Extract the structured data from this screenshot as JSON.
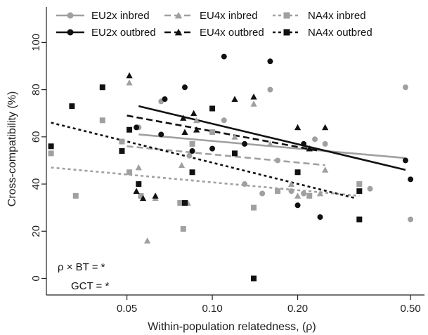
{
  "chart_data": {
    "type": "scatter",
    "xlabel": "Within-population relatedness, (ρ)",
    "ylabel": "Cross-compatibility (%)",
    "x_scale": "log",
    "xlim": [
      0.026,
      0.56
    ],
    "ylim": [
      -7,
      115
    ],
    "x_ticks": [
      0.05,
      0.1,
      0.2,
      0.5
    ],
    "x_tick_labels": [
      "0.05",
      "0.10",
      "0.20",
      "0.50"
    ],
    "y_ticks": [
      0,
      20,
      40,
      60,
      80,
      100
    ],
    "y_tick_labels": [
      "0",
      "20",
      "40",
      "60",
      "80",
      "100"
    ],
    "grid": false,
    "legend_position": "top",
    "annotations": [
      "ρ × BT = *",
      "GCT = *"
    ],
    "colors": {
      "black": "#111111",
      "grey": "#a0a0a0"
    },
    "series": [
      {
        "name": "EU2x inbred",
        "marker": "circle",
        "color": "#a0a0a0",
        "line_style": "solid",
        "points": [
          [
            0.055,
            64
          ],
          [
            0.066,
            75
          ],
          [
            0.083,
            52
          ],
          [
            0.11,
            67
          ],
          [
            0.13,
            40
          ],
          [
            0.15,
            36
          ],
          [
            0.16,
            80
          ],
          [
            0.17,
            50
          ],
          [
            0.19,
            37
          ],
          [
            0.21,
            36
          ],
          [
            0.23,
            59
          ],
          [
            0.25,
            57
          ],
          [
            0.36,
            38
          ],
          [
            0.48,
            81
          ],
          [
            0.5,
            25
          ]
        ],
        "fit": [
          [
            0.055,
            61
          ],
          [
            0.48,
            51
          ]
        ]
      },
      {
        "name": "EU2x outbred",
        "marker": "circle",
        "color": "#111111",
        "line_style": "solid",
        "points": [
          [
            0.054,
            64
          ],
          [
            0.066,
            61
          ],
          [
            0.068,
            76
          ],
          [
            0.08,
            81
          ],
          [
            0.085,
            54
          ],
          [
            0.1,
            55
          ],
          [
            0.11,
            94
          ],
          [
            0.13,
            57
          ],
          [
            0.16,
            92
          ],
          [
            0.2,
            31
          ],
          [
            0.21,
            57
          ],
          [
            0.24,
            26
          ],
          [
            0.48,
            50
          ],
          [
            0.5,
            42
          ]
        ],
        "fit": [
          [
            0.055,
            73
          ],
          [
            0.48,
            46
          ]
        ]
      },
      {
        "name": "EU4x inbred",
        "marker": "triangle",
        "color": "#a0a0a0",
        "line_style": "dashed",
        "points": [
          [
            0.051,
            83
          ],
          [
            0.055,
            47
          ],
          [
            0.059,
            16
          ],
          [
            0.063,
            34
          ],
          [
            0.078,
            48
          ],
          [
            0.082,
            32
          ],
          [
            0.088,
            67
          ],
          [
            0.12,
            60
          ],
          [
            0.14,
            74
          ],
          [
            0.16,
            57
          ],
          [
            0.19,
            40
          ],
          [
            0.2,
            35
          ],
          [
            0.24,
            36
          ],
          [
            0.25,
            46
          ]
        ],
        "fit": [
          [
            0.05,
            56
          ],
          [
            0.25,
            48
          ]
        ]
      },
      {
        "name": "EU4x outbred",
        "marker": "triangle",
        "color": "#111111",
        "line_style": "dashed",
        "points": [
          [
            0.051,
            86
          ],
          [
            0.054,
            37
          ],
          [
            0.057,
            34
          ],
          [
            0.063,
            35
          ],
          [
            0.079,
            68
          ],
          [
            0.08,
            62
          ],
          [
            0.086,
            70
          ],
          [
            0.088,
            63
          ],
          [
            0.12,
            76
          ],
          [
            0.14,
            77
          ],
          [
            0.2,
            64
          ],
          [
            0.22,
            55
          ],
          [
            0.25,
            64
          ]
        ],
        "fit": [
          [
            0.05,
            69
          ],
          [
            0.24,
            54
          ]
        ]
      },
      {
        "name": "NA4x inbred",
        "marker": "square",
        "color": "#a0a0a0",
        "line_style": "dotted",
        "points": [
          [
            0.027,
            53
          ],
          [
            0.033,
            35
          ],
          [
            0.041,
            67
          ],
          [
            0.048,
            58
          ],
          [
            0.051,
            45
          ],
          [
            0.056,
            35
          ],
          [
            0.077,
            32
          ],
          [
            0.079,
            21
          ],
          [
            0.085,
            57
          ],
          [
            0.1,
            62
          ],
          [
            0.14,
            30
          ],
          [
            0.17,
            37
          ],
          [
            0.22,
            35
          ],
          [
            0.33,
            40
          ]
        ],
        "fit": [
          [
            0.027,
            47
          ],
          [
            0.33,
            35
          ]
        ]
      },
      {
        "name": "NA4x outbred",
        "marker": "square",
        "color": "#111111",
        "line_style": "dotted",
        "points": [
          [
            0.027,
            56
          ],
          [
            0.032,
            73
          ],
          [
            0.041,
            81
          ],
          [
            0.048,
            54
          ],
          [
            0.051,
            63
          ],
          [
            0.055,
            40
          ],
          [
            0.08,
            32
          ],
          [
            0.085,
            45
          ],
          [
            0.1,
            72
          ],
          [
            0.12,
            53
          ],
          [
            0.14,
            0
          ],
          [
            0.2,
            45
          ],
          [
            0.33,
            37
          ],
          [
            0.33,
            25
          ]
        ],
        "fit": [
          [
            0.027,
            66
          ],
          [
            0.32,
            34
          ]
        ]
      }
    ]
  }
}
